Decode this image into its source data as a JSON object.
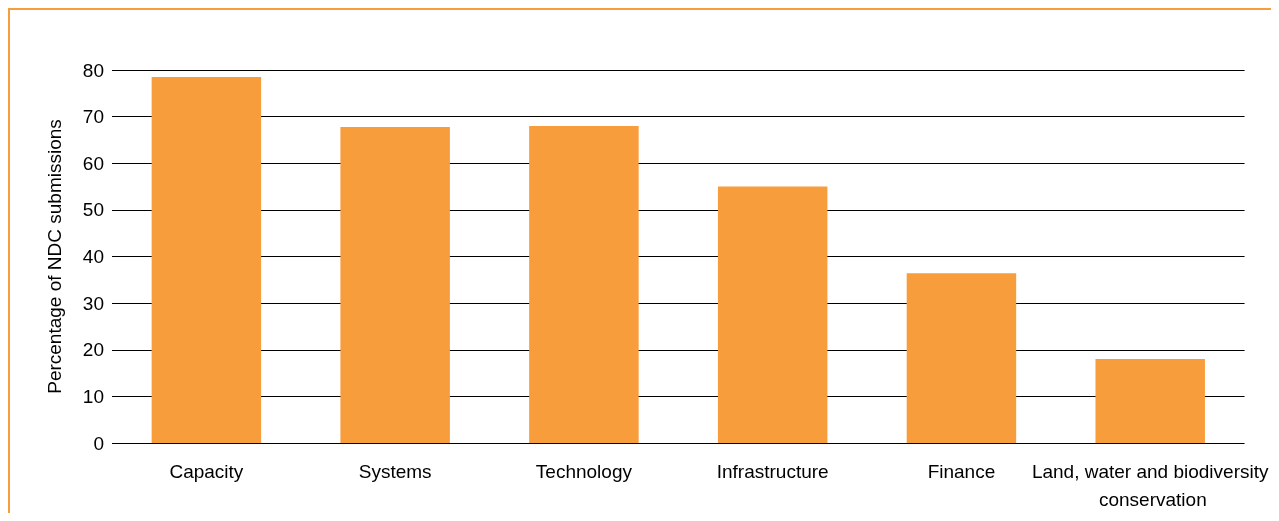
{
  "chart_data": {
    "type": "bar",
    "ylabel": "Percentage of NDC submissions",
    "categories": [
      "Capacity",
      "Systems",
      "Technology",
      "Infrastructure",
      "Finance",
      "Land, water and biodiversity conservation"
    ],
    "values": [
      78.5,
      67.8,
      68.0,
      55.0,
      36.4,
      18.0
    ],
    "color": "#f89d3c",
    "ylim": [
      0,
      80
    ],
    "yticks": [
      0,
      10,
      20,
      30,
      40,
      50,
      60,
      70,
      80
    ],
    "grid": "y"
  }
}
